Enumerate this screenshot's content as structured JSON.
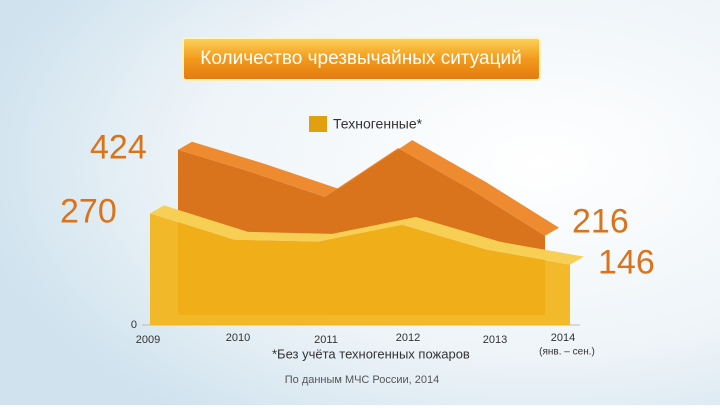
{
  "chart_data": {
    "type": "area",
    "title": "Количество чрезвычайных ситуаций",
    "categories": [
      "2009",
      "2010",
      "2011",
      "2012",
      "2013",
      "2014"
    ],
    "category_note": "(янв. – сен.)",
    "series": [
      {
        "color": "#d9731c",
        "values": [
          424,
          370,
          310,
          428,
          327,
          216
        ]
      },
      {
        "name": "Техногенные*",
        "color": "#f2b318",
        "values": [
          270,
          206,
          201,
          242,
          182,
          146
        ]
      }
    ],
    "ylim": [
      0,
      450
    ],
    "yticks": [
      0
    ],
    "legend": "top",
    "footnote": "*Без учёта техногенных пожаров",
    "source": "По данным МЧС России, 2014"
  }
}
